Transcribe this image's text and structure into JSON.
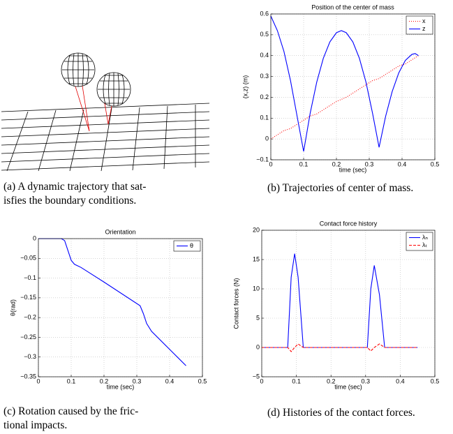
{
  "captions": [
    [
      "(a) A dynamic trajectory that sat-",
      "isfies the boundary conditions."
    ],
    [
      "(b) Trajectories of center of mass."
    ],
    [
      "(c) Rotation caused by the fric-",
      "tional impacts."
    ],
    [
      "(d) Histories of the contact forces."
    ]
  ],
  "chart_data": [
    {
      "type": "line",
      "title": "Position of the center of mass",
      "xlabel": "time (sec)",
      "ylabel": "(x,z) (m)",
      "x": [
        0,
        0.02,
        0.04,
        0.06,
        0.08,
        0.1,
        0.12,
        0.14,
        0.16,
        0.18,
        0.2,
        0.215,
        0.23,
        0.25,
        0.27,
        0.29,
        0.31,
        0.33,
        0.35,
        0.37,
        0.39,
        0.41,
        0.43,
        0.44,
        0.45
      ],
      "series": [
        {
          "name": "x",
          "color": "#ff0000",
          "style": "dotted",
          "values": [
            0,
            0.02,
            0.04,
            0.05,
            0.07,
            0.09,
            0.11,
            0.12,
            0.14,
            0.16,
            0.18,
            0.19,
            0.2,
            0.22,
            0.24,
            0.26,
            0.28,
            0.29,
            0.31,
            0.33,
            0.35,
            0.36,
            0.38,
            0.39,
            0.4
          ]
        },
        {
          "name": "z",
          "color": "#0000ff",
          "style": "solid",
          "values": [
            0.59,
            0.52,
            0.42,
            0.28,
            0.11,
            -0.06,
            0.124,
            0.273,
            0.387,
            0.466,
            0.51,
            0.52,
            0.51,
            0.466,
            0.387,
            0.273,
            0.124,
            -0.04,
            0.109,
            0.228,
            0.317,
            0.377,
            0.406,
            0.41,
            0.4
          ]
        }
      ],
      "xlim": [
        0,
        0.5
      ],
      "xticks": [
        0,
        0.1,
        0.2,
        0.3,
        0.4,
        0.5
      ],
      "ylim": [
        -0.1,
        0.6
      ],
      "yticks": [
        {
          "value": -0.1,
          "label": "−0.1"
        },
        0,
        0.1,
        0.2,
        0.3,
        0.4,
        0.5,
        0.6
      ],
      "grid": true,
      "legend": "top-right"
    },
    {
      "type": "line",
      "title": "Orientation",
      "xlabel": "time (sec)",
      "ylabel": "θ(rad)",
      "x": [
        0,
        0.07,
        0.08,
        0.09,
        0.1,
        0.11,
        0.13,
        0.2,
        0.31,
        0.32,
        0.33,
        0.345,
        0.45
      ],
      "series": [
        {
          "name": "θ",
          "color": "#0000ff",
          "style": "solid",
          "values": [
            0,
            0,
            -0.005,
            -0.03,
            -0.055,
            -0.065,
            -0.073,
            -0.11,
            -0.17,
            -0.19,
            -0.215,
            -0.235,
            -0.322
          ]
        }
      ],
      "xlim": [
        0,
        0.5
      ],
      "xticks": [
        0,
        0.1,
        0.2,
        0.3,
        0.4,
        0.5
      ],
      "ylim": [
        -0.35,
        0
      ],
      "yticks": [
        {
          "value": -0.35,
          "label": "−0.35"
        },
        {
          "value": -0.3,
          "label": "−0.3"
        },
        {
          "value": -0.25,
          "label": "−0.25"
        },
        {
          "value": -0.2,
          "label": "−0.2"
        },
        {
          "value": -0.15,
          "label": "−0.15"
        },
        {
          "value": -0.1,
          "label": "−0.1"
        },
        {
          "value": -0.05,
          "label": "−0.05"
        },
        0
      ],
      "grid": true,
      "legend": "top-right"
    },
    {
      "type": "line",
      "title": "Contact force history",
      "xlabel": "time (sec)",
      "ylabel": "Contact forces  (N)",
      "x": [
        0,
        0.075,
        0.085,
        0.095,
        0.105,
        0.12,
        0.305,
        0.315,
        0.325,
        0.34,
        0.355,
        0.45
      ],
      "series": [
        {
          "name": "λₙ",
          "color": "#0000ff",
          "style": "solid",
          "values": [
            0,
            0,
            12,
            16,
            12,
            0,
            0,
            10,
            14,
            9,
            0,
            0
          ]
        },
        {
          "name": "λₜ",
          "color": "#ff0000",
          "style": "dashed",
          "values": [
            0,
            0,
            -0.7,
            0,
            0.6,
            0,
            0,
            -0.6,
            0,
            0.6,
            0,
            0
          ]
        }
      ],
      "xlim": [
        0,
        0.5
      ],
      "xticks": [
        0,
        0.1,
        0.2,
        0.3,
        0.4,
        0.5
      ],
      "ylim": [
        -5,
        20
      ],
      "yticks": [
        {
          "value": -5,
          "label": "−5"
        },
        0,
        5,
        10,
        15,
        20
      ],
      "grid": true,
      "legend": "top-right"
    }
  ]
}
